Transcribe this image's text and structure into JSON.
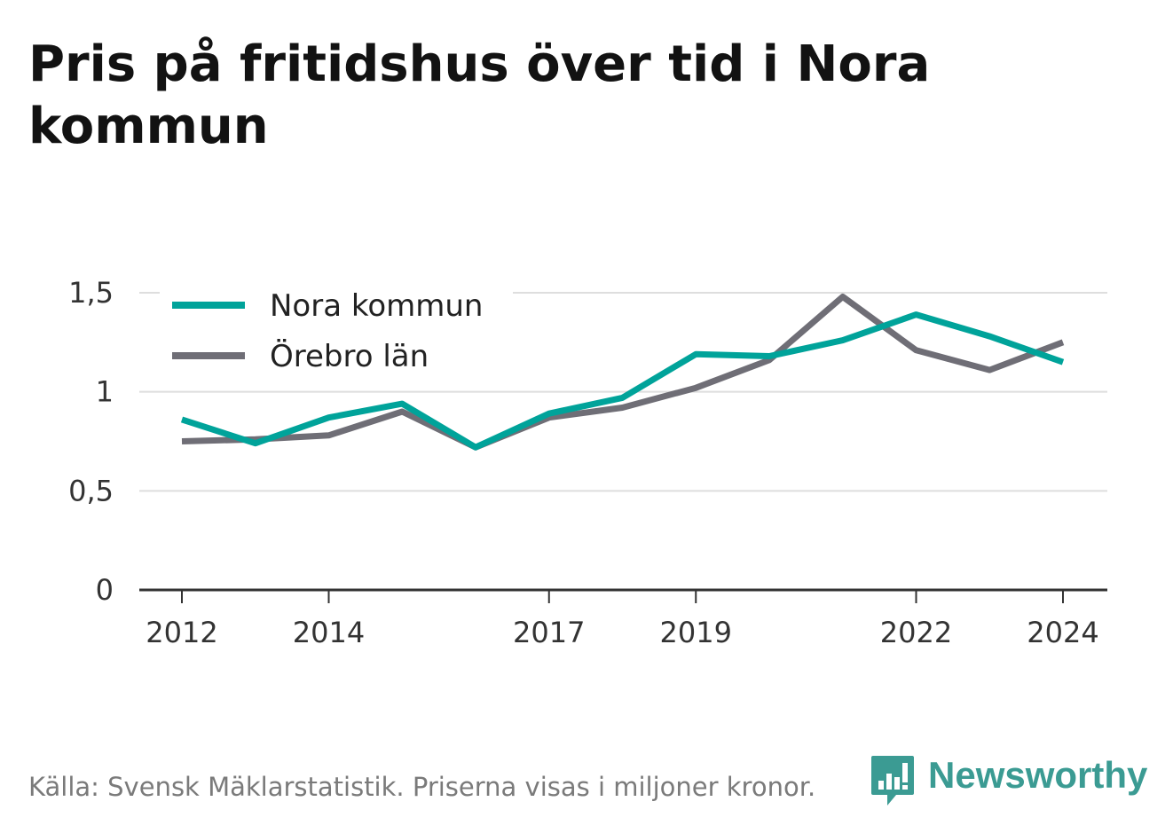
{
  "header": {
    "title": "Pris på fritidshus över tid i Nora kommun"
  },
  "footer": {
    "source": "Källa: Svensk Mäklarstatistik. Priserna visas i miljoner kronor."
  },
  "brand": {
    "name": "Newsworthy",
    "icon": "newsworthy-logo-icon",
    "color": "#3b9b93"
  },
  "chart_data": {
    "type": "line",
    "x": [
      2012,
      2013,
      2014,
      2015,
      2016,
      2017,
      2018,
      2019,
      2020,
      2021,
      2022,
      2023,
      2024
    ],
    "x_tick_labels": [
      "2012",
      "2014",
      "2017",
      "2019",
      "2022",
      "2024"
    ],
    "y_ticks": [
      0,
      0.5,
      1,
      1.5
    ],
    "y_tick_labels": [
      "0",
      "0,5",
      "1",
      "1,5"
    ],
    "ylim": [
      0,
      1.5
    ],
    "grid": true,
    "legend_position": "top-left",
    "series": [
      {
        "name": "Nora kommun",
        "color": "#00a39a",
        "values": [
          0.86,
          0.74,
          0.87,
          0.94,
          0.72,
          0.89,
          0.97,
          1.19,
          1.18,
          1.26,
          1.39,
          1.28,
          1.15
        ]
      },
      {
        "name": "Örebro län",
        "color": "#6f6e76",
        "values": [
          0.75,
          0.76,
          0.78,
          0.9,
          0.72,
          0.87,
          0.92,
          1.02,
          1.16,
          1.48,
          1.21,
          1.11,
          1.25
        ]
      }
    ]
  }
}
